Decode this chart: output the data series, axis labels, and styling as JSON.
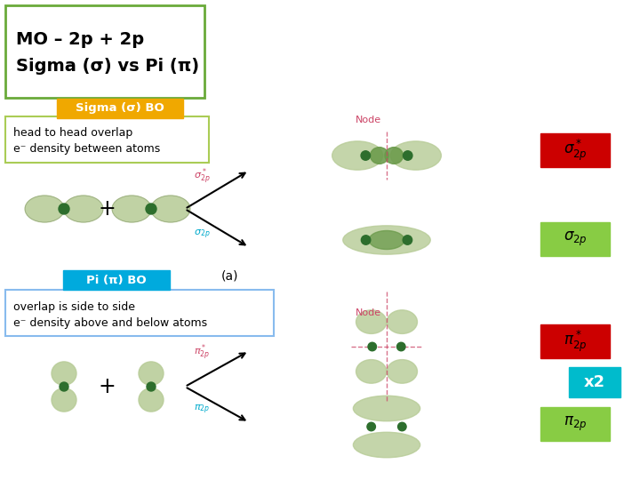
{
  "title_line1": "MO – 2p + 2p",
  "title_line2": "Sigma (σ) vs Pi (π)",
  "title_border_color": "#6aaa3a",
  "sigma_bo_label": "Sigma (σ) BO",
  "sigma_bo_bg": "#f0a800",
  "sigma_bo_text_color": "white",
  "sigma_desc_line1": "head to head overlap",
  "sigma_desc_line2": "e⁻ density between atoms",
  "sigma_desc_border": "#aacc55",
  "pi_bo_label": "Pi (π) BO",
  "pi_bo_bg": "#00aadd",
  "pi_bo_text_color": "white",
  "pi_desc_line1": "overlap is side to side",
  "pi_desc_line2": "e⁻ density above and below atoms",
  "pi_desc_border": "#88bbee",
  "sigma_star_bg": "#cc0000",
  "sigma_bg": "#88cc44",
  "pi_star_bg": "#cc0000",
  "pi_bg": "#88cc44",
  "x2_label": "x2",
  "x2_bg": "#00bbcc",
  "x2_text_color": "white",
  "arrow_color": "black",
  "node_label": "Node",
  "node_color": "#cc4466",
  "background": "white",
  "orbital_light": "#b8cc98",
  "orbital_dark": "#6a9a4a",
  "nucleus_color": "#2d6e2d"
}
